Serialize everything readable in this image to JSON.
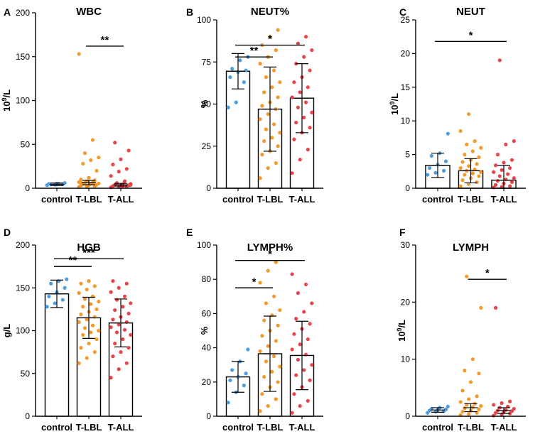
{
  "colors": {
    "control": "#4a9de0",
    "T-LBL": "#f39a2b",
    "T-ALL": "#e8454a"
  },
  "chart_data": [
    {
      "letter": "A",
      "title": "WBC",
      "type": "bar",
      "ylabel": "10^9/L",
      "ylabel_base": "10",
      "ylabel_sup": "9",
      "ylabel_rest": "/L",
      "ylim": [
        0,
        200
      ],
      "yticks": [
        0,
        50,
        100,
        150,
        200
      ],
      "show_bars": false,
      "categories": [
        "control",
        "T-LBL",
        "T-ALL"
      ],
      "means": [
        4.5,
        6.5,
        4.0
      ],
      "sd": [
        1.5,
        2.5,
        1.5
      ],
      "points": [
        [
          3.5,
          4,
          4.5,
          5,
          5.5,
          6,
          4.2,
          5.2
        ],
        [
          1.5,
          2,
          2.5,
          3,
          3.5,
          4,
          4.5,
          5,
          5.5,
          6,
          6.5,
          7,
          8,
          9,
          10,
          12,
          20,
          28,
          32,
          35,
          40,
          55,
          153,
          2.8,
          3.2,
          6.2
        ],
        [
          1,
          1.5,
          2,
          2.5,
          3,
          3.5,
          4,
          4.5,
          5,
          6,
          8,
          14,
          19,
          22,
          27,
          33,
          43,
          52,
          2.2,
          3.8
        ]
      ],
      "sig": [
        {
          "from": 1,
          "to": 2,
          "y": 162,
          "label": "**"
        }
      ]
    },
    {
      "letter": "B",
      "title": "NEUT%",
      "type": "bar",
      "ylabel": "%",
      "ylim": [
        0,
        100
      ],
      "yticks": [
        0,
        25,
        50,
        75,
        100
      ],
      "show_bars": true,
      "categories": [
        "control",
        "T-LBL",
        "T-ALL"
      ],
      "means": [
        69.5,
        47,
        53.5
      ],
      "sd": [
        10.5,
        25,
        20.5
      ],
      "points": [
        [
          48,
          51,
          63,
          66,
          69,
          70,
          71,
          76,
          78
        ],
        [
          6,
          12,
          15,
          20,
          22,
          25,
          28,
          30,
          33,
          35,
          38,
          41,
          44,
          47,
          49,
          51,
          54,
          57,
          60,
          63,
          66,
          70,
          74,
          78,
          82,
          85,
          90,
          94
        ],
        [
          9,
          17,
          23,
          29,
          33,
          36,
          39,
          42,
          45,
          48,
          51,
          54,
          57,
          60,
          63,
          66,
          70,
          74,
          78,
          82,
          86,
          90
        ]
      ],
      "sig": [
        {
          "from": 0,
          "to": 1,
          "y": 78,
          "label": "**"
        },
        {
          "from": 0,
          "to": 2,
          "y": 85,
          "label": "*"
        }
      ]
    },
    {
      "letter": "C",
      "title": "NEUT",
      "type": "bar",
      "ylabel": "10^9/L",
      "ylabel_base": "10",
      "ylabel_sup": "9",
      "ylabel_rest": "/L",
      "ylim": [
        0,
        25
      ],
      "yticks": [
        0,
        5,
        10,
        15,
        20,
        25
      ],
      "show_bars": true,
      "categories": [
        "control",
        "T-LBL",
        "T-ALL"
      ],
      "means": [
        3.4,
        2.6,
        1.2
      ],
      "sd": [
        1.8,
        1.8,
        2.2
      ],
      "points": [
        [
          2.0,
          2.3,
          2.6,
          3.0,
          3.5,
          4.0,
          4.8,
          5.2,
          8.1
        ],
        [
          0.3,
          0.6,
          0.9,
          1.2,
          1.5,
          1.8,
          2.0,
          2.2,
          2.4,
          2.6,
          2.8,
          3.0,
          3.3,
          3.6,
          3.9,
          4.2,
          4.6,
          5.0,
          5.5,
          6.0,
          6.5,
          7.0,
          8.5,
          11.0
        ],
        [
          0.1,
          0.2,
          0.3,
          0.5,
          0.7,
          0.9,
          1.1,
          1.3,
          1.5,
          1.8,
          2.1,
          2.4,
          2.7,
          3.0,
          3.4,
          3.8,
          4.2,
          5.0,
          6.5,
          7.0,
          19.0
        ]
      ],
      "sig": [
        {
          "from": 0,
          "to": 2,
          "y": 21.8,
          "label": "*"
        }
      ]
    },
    {
      "letter": "D",
      "title": "HGB",
      "type": "bar",
      "ylabel": "g/L",
      "ylim": [
        0,
        200
      ],
      "yticks": [
        0,
        50,
        100,
        150,
        200
      ],
      "show_bars": true,
      "categories": [
        "control",
        "T-LBL",
        "T-ALL"
      ],
      "means": [
        143,
        115,
        109
      ],
      "sd": [
        16,
        24,
        28
      ],
      "points": [
        [
          128,
          132,
          136,
          140,
          145,
          150,
          155,
          158,
          160
        ],
        [
          62,
          68,
          75,
          80,
          85,
          90,
          95,
          98,
          100,
          103,
          106,
          110,
          113,
          116,
          119,
          122,
          125,
          128,
          131,
          134,
          137,
          140,
          144,
          148,
          152,
          155,
          158
        ],
        [
          45,
          55,
          62,
          70,
          75,
          80,
          85,
          90,
          95,
          98,
          101,
          104,
          107,
          110,
          113,
          116,
          120,
          124,
          128,
          132,
          136,
          140,
          145,
          150,
          155,
          158
        ]
      ],
      "sig": [
        {
          "from": 0,
          "to": 1,
          "y": 175,
          "label": "**"
        },
        {
          "from": 0,
          "to": 2,
          "y": 184,
          "label": "***"
        }
      ]
    },
    {
      "letter": "E",
      "title": "LYMPH%",
      "type": "bar",
      "ylabel": "%",
      "ylim": [
        0,
        100
      ],
      "yticks": [
        0,
        20,
        40,
        60,
        80,
        100
      ],
      "show_bars": true,
      "categories": [
        "control",
        "T-LBL",
        "T-ALL"
      ],
      "means": [
        23,
        36.5,
        35.5
      ],
      "sd": [
        9,
        22,
        20
      ],
      "points": [
        [
          8,
          14,
          18,
          21,
          23,
          25,
          27,
          32,
          39
        ],
        [
          3,
          6,
          10,
          13,
          17,
          20,
          23,
          26,
          29,
          32,
          35,
          38,
          41,
          44,
          47,
          50,
          53,
          56,
          59,
          62,
          66,
          70,
          78,
          85,
          90
        ],
        [
          2,
          6,
          9,
          13,
          17,
          21,
          24,
          27,
          30,
          33,
          36,
          39,
          42,
          45,
          48,
          51,
          54,
          57,
          61,
          66,
          72,
          77,
          83
        ]
      ],
      "sig": [
        {
          "from": 0,
          "to": 1,
          "y": 75,
          "label": "*"
        },
        {
          "from": 0,
          "to": 2,
          "y": 91,
          "label": "*"
        }
      ]
    },
    {
      "letter": "F",
      "title": "LYMPH",
      "type": "bar",
      "ylabel": "10^9/L",
      "ylabel_base": "10",
      "ylabel_sup": "9",
      "ylabel_rest": "/L",
      "ylim": [
        0,
        30
      ],
      "yticks": [
        0,
        10,
        20,
        30
      ],
      "show_bars": false,
      "categories": [
        "control",
        "T-LBL",
        "T-ALL"
      ],
      "means": [
        1.1,
        1.5,
        1.0
      ],
      "sd": [
        0.4,
        0.7,
        0.5
      ],
      "points": [
        [
          0.6,
          0.8,
          0.9,
          1.0,
          1.1,
          1.2,
          1.3,
          1.5,
          1.7
        ],
        [
          0.2,
          0.4,
          0.6,
          0.8,
          1.0,
          1.2,
          1.4,
          1.6,
          1.8,
          2.0,
          2.2,
          2.5,
          3.0,
          3.5,
          4.5,
          6.0,
          7.5,
          8.0,
          10.0,
          19.0,
          24.5
        ],
        [
          0.1,
          0.3,
          0.5,
          0.6,
          0.8,
          0.9,
          1.0,
          1.1,
          1.3,
          1.5,
          1.7,
          2.0,
          2.3,
          2.6,
          19.0
        ]
      ],
      "sig": [
        {
          "from": 1,
          "to": 2,
          "y": 24,
          "label": "*"
        }
      ]
    }
  ]
}
